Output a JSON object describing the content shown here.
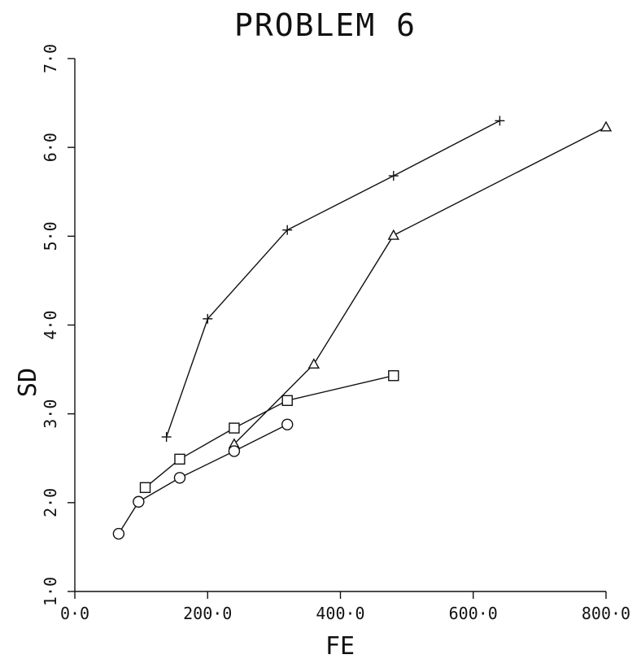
{
  "chart_data": {
    "type": "line",
    "title": "PROBLEM 6",
    "xlabel": "FE",
    "ylabel": "SD",
    "xlim": [
      0,
      800
    ],
    "ylim": [
      1,
      7
    ],
    "xticks": [
      0,
      200,
      400,
      600,
      800
    ],
    "yticks": [
      1,
      2,
      3,
      4,
      5,
      6,
      7
    ],
    "xtick_labels": [
      "0·0",
      "200·0",
      "400·0",
      "600·0",
      "800·0"
    ],
    "ytick_labels": [
      "1·0",
      "2·0",
      "3·0",
      "4·0",
      "5·0",
      "6·0",
      "7·0"
    ],
    "grid": false,
    "series": [
      {
        "marker": "plus",
        "points": [
          [
            138,
            2.74
          ],
          [
            200,
            4.07
          ],
          [
            320,
            5.07
          ],
          [
            480,
            5.68
          ],
          [
            640,
            6.3
          ]
        ]
      },
      {
        "marker": "triangle",
        "points": [
          [
            240,
            2.66
          ],
          [
            360,
            3.56
          ],
          [
            480,
            5.01
          ],
          [
            800,
            6.23
          ]
        ]
      },
      {
        "marker": "square",
        "points": [
          [
            106,
            2.17
          ],
          [
            158,
            2.49
          ],
          [
            240,
            2.84
          ],
          [
            320,
            3.15
          ],
          [
            480,
            3.43
          ]
        ]
      },
      {
        "marker": "circle",
        "points": [
          [
            66,
            1.65
          ],
          [
            96,
            2.01
          ],
          [
            158,
            2.28
          ],
          [
            240,
            2.58
          ],
          [
            320,
            2.88
          ]
        ]
      }
    ],
    "colors": {
      "ink": "#111111",
      "background": "#ffffff"
    }
  }
}
